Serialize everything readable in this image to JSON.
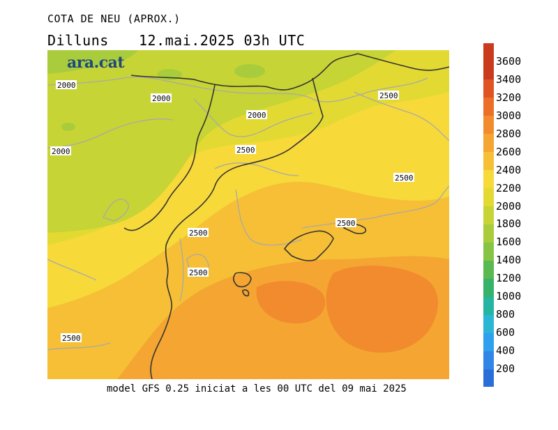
{
  "header": {
    "title": "COTA DE NEU (APROX.)",
    "day": "Dilluns",
    "datetime": "12.mai.2025 03h UTC"
  },
  "logo": {
    "text": "ara.cat"
  },
  "footer": {
    "text": "model GFS 0.25 iniciat a les 00 UTC del 09 mai 2025"
  },
  "colorbar": {
    "ticks": [
      "200",
      "400",
      "600",
      "800",
      "1000",
      "1200",
      "1400",
      "1600",
      "1800",
      "2000",
      "2200",
      "2400",
      "2600",
      "2800",
      "3000",
      "3200",
      "3400",
      "3600"
    ],
    "colors": [
      "#2a6fd8",
      "#2f86e6",
      "#2ea0ee",
      "#2bb6d6",
      "#25b5a0",
      "#35b36a",
      "#5ab950",
      "#86c443",
      "#a9cc3d",
      "#c7d435",
      "#e2da33",
      "#f7d93a",
      "#f6bf36",
      "#f4a532",
      "#f18b2d",
      "#ec6f28",
      "#e05424",
      "#c93a1f"
    ]
  },
  "map": {
    "contour_labels": [
      "2000",
      "2000",
      "2000",
      "2000",
      "2500",
      "2500",
      "2500",
      "2500",
      "2500",
      "2500",
      "2500"
    ]
  }
}
